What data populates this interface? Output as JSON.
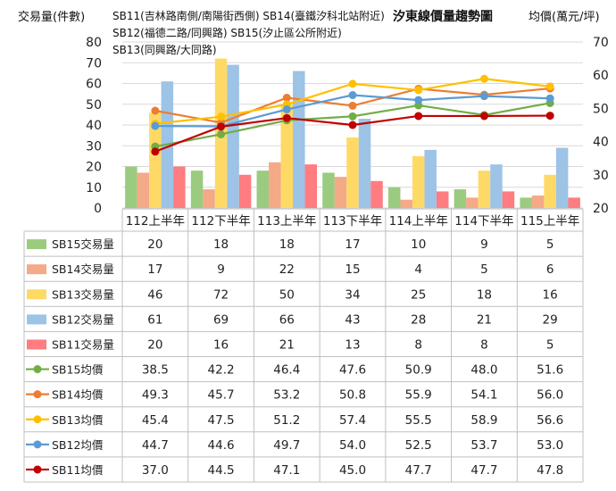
{
  "chart_data": {
    "type": "bar",
    "title": "汐東線價量趨勢圖",
    "ylabel_left": "交易量(件數)",
    "ylabel_right": "均價(萬元/坪)",
    "notes": [
      "SB11(吉林路南側/南陽街西側) SB14(臺鐵汐科北站附近)",
      "SB12(福德二路/同興路) SB15(汐止區公所附近)",
      "SB13(同興路/大同路)"
    ],
    "categories": [
      "112上半年",
      "112下半年",
      "113上半年",
      "113下半年",
      "114上半年",
      "114下半年",
      "115上半年"
    ],
    "ylim_left": [
      0,
      80
    ],
    "yticks_left": [
      0,
      10,
      20,
      30,
      40,
      50,
      60,
      70,
      80
    ],
    "ylim_right": [
      20,
      70
    ],
    "yticks_right": [
      20,
      30,
      40,
      50,
      60,
      70
    ],
    "bar_series": [
      {
        "name": "SB15交易量",
        "color": "#9BCB7F",
        "values": [
          20,
          18,
          18,
          17,
          10,
          9,
          5
        ]
      },
      {
        "name": "SB14交易量",
        "color": "#F4A987",
        "values": [
          17,
          9,
          22,
          15,
          4,
          5,
          6
        ]
      },
      {
        "name": "SB13交易量",
        "color": "#FFD966",
        "values": [
          46,
          72,
          50,
          34,
          25,
          18,
          16
        ]
      },
      {
        "name": "SB12交易量",
        "color": "#9DC3E6",
        "values": [
          61,
          69,
          66,
          43,
          28,
          21,
          29
        ]
      },
      {
        "name": "SB11交易量",
        "color": "#FF7C80",
        "values": [
          20,
          16,
          21,
          13,
          8,
          8,
          5
        ]
      }
    ],
    "line_series": [
      {
        "name": "SB15均價",
        "color": "#70AD47",
        "values": [
          38.5,
          42.2,
          46.4,
          47.6,
          50.9,
          48.0,
          51.6
        ]
      },
      {
        "name": "SB14均價",
        "color": "#ED7D31",
        "values": [
          49.3,
          45.7,
          53.2,
          50.8,
          55.9,
          54.1,
          56.0
        ]
      },
      {
        "name": "SB13均價",
        "color": "#FFC000",
        "values": [
          45.4,
          47.5,
          51.2,
          57.4,
          55.5,
          58.9,
          56.6
        ]
      },
      {
        "name": "SB12均價",
        "color": "#5B9BD5",
        "values": [
          44.7,
          44.6,
          49.7,
          54.0,
          52.5,
          53.7,
          53.0
        ]
      },
      {
        "name": "SB11均價",
        "color": "#C00000",
        "values": [
          37.0,
          44.5,
          47.1,
          45.0,
          47.7,
          47.7,
          47.8
        ]
      }
    ],
    "table_values_as_text": [
      [
        "20",
        "18",
        "18",
        "17",
        "10",
        "9",
        "5"
      ],
      [
        "17",
        "9",
        "22",
        "15",
        "4",
        "5",
        "6"
      ],
      [
        "46",
        "72",
        "50",
        "34",
        "25",
        "18",
        "16"
      ],
      [
        "61",
        "69",
        "66",
        "43",
        "28",
        "21",
        "29"
      ],
      [
        "20",
        "16",
        "21",
        "13",
        "8",
        "8",
        "5"
      ],
      [
        "38.5",
        "42.2",
        "46.4",
        "47.6",
        "50.9",
        "48.0",
        "51.6"
      ],
      [
        "49.3",
        "45.7",
        "53.2",
        "50.8",
        "55.9",
        "54.1",
        "56.0"
      ],
      [
        "45.4",
        "47.5",
        "51.2",
        "57.4",
        "55.5",
        "58.9",
        "56.6"
      ],
      [
        "44.7",
        "44.6",
        "49.7",
        "54.0",
        "52.5",
        "53.7",
        "53.0"
      ],
      [
        "37.0",
        "44.5",
        "47.1",
        "45.0",
        "47.7",
        "47.7",
        "47.8"
      ]
    ],
    "grid": true,
    "legend_placement": "table-left"
  }
}
